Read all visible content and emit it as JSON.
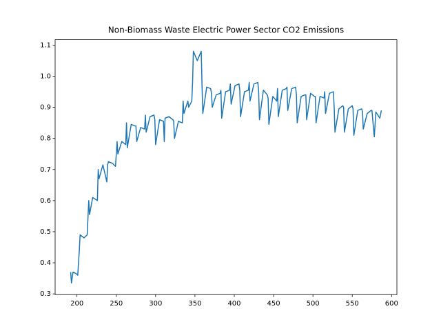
{
  "chart_data": {
    "type": "line",
    "title": "Non-Biomass Waste Electric Power Sector CO2 Emissions",
    "color": "#1f77b4",
    "x": [
      192,
      193,
      195,
      199,
      201,
      203,
      204,
      209,
      213,
      215,
      216,
      220,
      226,
      227,
      228,
      233,
      238,
      239,
      240,
      245,
      249,
      251,
      252,
      257,
      262,
      263,
      264,
      269,
      274,
      275,
      276,
      281,
      286,
      287,
      288,
      293,
      298,
      299,
      300,
      305,
      310,
      311,
      312,
      317,
      322,
      323,
      324,
      329,
      334,
      335,
      336,
      341,
      342,
      346,
      347,
      348,
      353,
      358,
      359,
      360,
      365,
      370,
      371,
      372,
      377,
      382,
      383,
      384,
      389,
      394,
      395,
      396,
      401,
      406,
      407,
      408,
      413,
      418,
      419,
      420,
      425,
      430,
      431,
      432,
      437,
      442,
      443,
      444,
      449,
      454,
      455,
      456,
      461,
      466,
      467,
      468,
      473,
      478,
      479,
      480,
      485,
      490,
      491,
      492,
      497,
      502,
      503,
      504,
      509,
      514,
      515,
      516,
      521,
      526,
      527,
      528,
      533,
      538,
      539,
      540,
      545,
      550,
      551,
      552,
      557,
      562,
      563,
      564,
      569,
      574,
      575,
      578,
      580,
      585,
      587
    ],
    "values": [
      0.37,
      0.335,
      0.37,
      0.365,
      0.36,
      0.44,
      0.49,
      0.48,
      0.49,
      0.6,
      0.555,
      0.61,
      0.6,
      0.7,
      0.67,
      0.715,
      0.66,
      0.715,
      0.725,
      0.72,
      0.71,
      0.79,
      0.75,
      0.79,
      0.78,
      0.85,
      0.77,
      0.845,
      0.84,
      0.84,
      0.79,
      0.835,
      0.83,
      0.875,
      0.82,
      0.87,
      0.875,
      0.86,
      0.78,
      0.86,
      0.855,
      0.79,
      0.865,
      0.87,
      0.86,
      0.855,
      0.8,
      0.855,
      0.85,
      0.92,
      0.88,
      0.92,
      0.9,
      0.92,
      0.98,
      1.08,
      1.05,
      1.08,
      0.97,
      0.88,
      0.965,
      0.96,
      0.945,
      0.9,
      0.94,
      0.945,
      0.955,
      0.865,
      0.95,
      0.955,
      0.975,
      0.91,
      0.97,
      0.975,
      0.955,
      0.87,
      0.95,
      0.955,
      0.98,
      0.92,
      0.975,
      0.98,
      0.95,
      0.86,
      0.955,
      0.94,
      0.93,
      0.845,
      0.935,
      0.92,
      0.96,
      0.87,
      0.955,
      0.96,
      0.965,
      0.89,
      0.96,
      0.965,
      0.94,
      0.85,
      0.935,
      0.94,
      0.94,
      0.86,
      0.945,
      0.935,
      0.935,
      0.85,
      0.935,
      0.93,
      0.95,
      0.88,
      0.945,
      0.95,
      0.9,
      0.82,
      0.895,
      0.905,
      0.9,
      0.82,
      0.895,
      0.905,
      0.895,
      0.81,
      0.89,
      0.895,
      0.885,
      0.83,
      0.88,
      0.89,
      0.89,
      0.805,
      0.885,
      0.865,
      0.89
    ],
    "xlim": [
      172.25,
      606.75
    ],
    "ylim": [
      0.2977,
      1.1173
    ],
    "xticks": [
      200,
      250,
      300,
      350,
      400,
      450,
      500,
      550,
      600
    ],
    "yticks": [
      0.3,
      0.4,
      0.5,
      0.6,
      0.7,
      0.8,
      0.9,
      {
        "value": 1,
        "label": "1.0"
      },
      1.1
    ]
  }
}
